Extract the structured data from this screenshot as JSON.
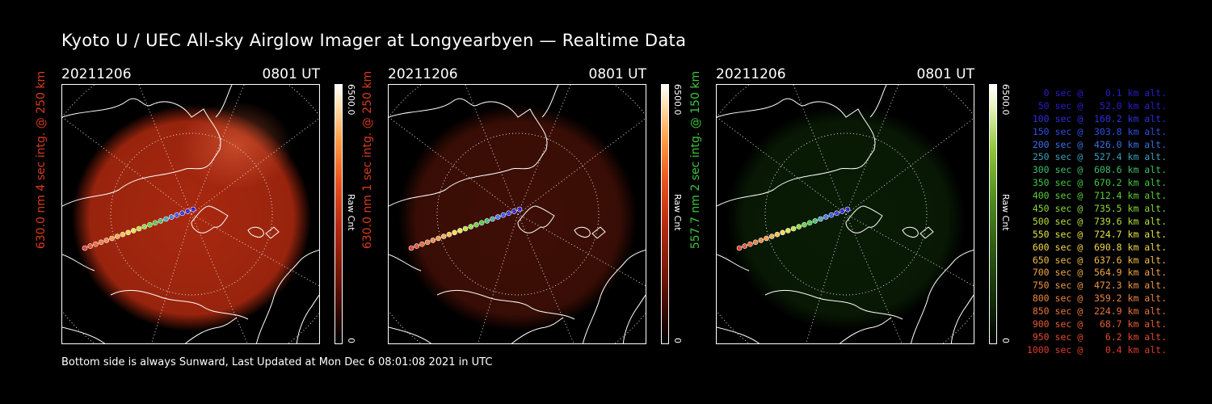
{
  "title": "Kyoto U / UEC All-sky Airglow Imager at Longyearbyen — Realtime Data",
  "panels": [
    {
      "date": "20211206",
      "time": "0801 UT",
      "ylabel": "630.0 nm 4 sec intg. @ 250 km",
      "ylabel_color": "#d83a1e",
      "cbar_max": "6500.0",
      "cbar_min": "0",
      "cbar_label": "Raw Cnt",
      "tint": "red",
      "intensity": 0.95
    },
    {
      "date": "20211206",
      "time": "0801 UT",
      "ylabel": "630.0 nm 1 sec intg. @ 250 km",
      "ylabel_color": "#d83a1e",
      "cbar_max": "6500.0",
      "cbar_min": "0",
      "cbar_label": "Raw Cnt",
      "tint": "red",
      "intensity": 0.35
    },
    {
      "date": "20211206",
      "time": "0801 UT",
      "ylabel": "557.7 nm 2 sec intg. @ 150 km",
      "ylabel_color": "#3ec43e",
      "cbar_max": "6500.0",
      "cbar_min": "0",
      "cbar_label": "Raw Cnt",
      "tint": "green",
      "intensity": 0.3
    }
  ],
  "colors": {
    "red_glow": "#b22a10",
    "green_glow": "#1e5a10",
    "cbar_red_top": "#ffffff",
    "cbar_red_bottom": "#000000"
  },
  "footer": "Bottom side is always Sunward, Last Updated at Mon Dec  6 08:01:08 2021 in UTC",
  "legend": [
    {
      "text": "   0 sec @    0.1 km alt.",
      "color": "#2b1ccc"
    },
    {
      "text": "  50 sec @   52.0 km alt.",
      "color": "#2b1ccc"
    },
    {
      "text": " 100 sec @  160.2 km alt.",
      "color": "#2e2ee0"
    },
    {
      "text": " 150 sec @  303.8 km alt.",
      "color": "#2f4de6"
    },
    {
      "text": " 200 sec @  426.0 km alt.",
      "color": "#3a6fe8"
    },
    {
      "text": " 250 sec @  527.4 km alt.",
      "color": "#3a9fb8"
    },
    {
      "text": " 300 sec @  608.6 km alt.",
      "color": "#3dbd6a"
    },
    {
      "text": " 350 sec @  670.2 km alt.",
      "color": "#3fc83c"
    },
    {
      "text": " 400 sec @  712.4 km alt.",
      "color": "#59d035"
    },
    {
      "text": " 450 sec @  735.5 km alt.",
      "color": "#8ad836"
    },
    {
      "text": " 500 sec @  739.6 km alt.",
      "color": "#b8e03a"
    },
    {
      "text": " 550 sec @  724.7 km alt.",
      "color": "#e2e444"
    },
    {
      "text": " 600 sec @  690.8 km alt.",
      "color": "#f2d64a"
    },
    {
      "text": " 650 sec @  637.6 km alt.",
      "color": "#f3bd48"
    },
    {
      "text": " 700 sec @  564.9 km alt.",
      "color": "#f1a544"
    },
    {
      "text": " 750 sec @  472.3 km alt.",
      "color": "#ef9640"
    },
    {
      "text": " 800 sec @  359.2 km alt.",
      "color": "#ec843c"
    },
    {
      "text": " 850 sec @  224.9 km alt.",
      "color": "#ea7438"
    },
    {
      "text": " 900 sec @   68.7 km alt.",
      "color": "#e65e34"
    },
    {
      "text": " 950 sec @    6.2 km alt.",
      "color": "#e24a30"
    },
    {
      "text": "1000 sec @    0.4 km alt.",
      "color": "#de3a2c"
    }
  ]
}
